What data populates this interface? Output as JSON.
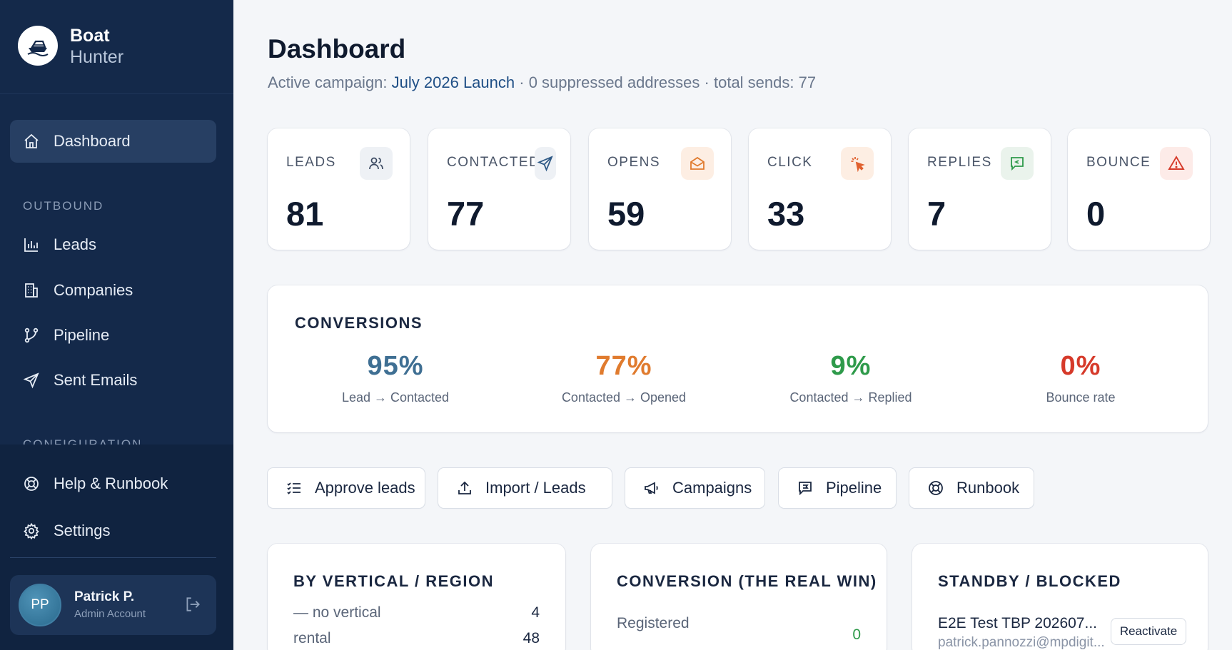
{
  "brand": {
    "name": "Boat",
    "sub": "Hunter"
  },
  "sidebar": {
    "active": "Dashboard",
    "items": [
      {
        "label": "Dashboard",
        "icon": "home-icon"
      },
      {
        "label": "Leads",
        "icon": "bar-chart-icon"
      },
      {
        "label": "Companies",
        "icon": "building-icon"
      },
      {
        "label": "Pipeline",
        "icon": "branch-icon"
      },
      {
        "label": "Sent Emails",
        "icon": "send-icon"
      },
      {
        "label": "Help & Runbook",
        "icon": "lifebuoy-icon"
      },
      {
        "label": "Settings",
        "icon": "gear-icon"
      }
    ],
    "sections": [
      "OUTBOUND",
      "CONFIGURATION"
    ]
  },
  "user": {
    "initials": "PP",
    "name": "Patrick P.",
    "role": "Admin Account"
  },
  "header": {
    "title": "Dashboard",
    "subtitle_prefix": "Active campaign:",
    "campaign": "July 2026 Launch",
    "suppressed": "0 suppressed addresses",
    "sends": "total sends: 77",
    "separator": "·"
  },
  "stats": [
    {
      "label": "LEADS",
      "value": "81",
      "icon": "users-icon"
    },
    {
      "label": "CONTACTED",
      "value": "77",
      "icon": "send-icon"
    },
    {
      "label": "OPENS",
      "value": "59",
      "icon": "envelope-open-icon"
    },
    {
      "label": "CLICK",
      "value": "33",
      "icon": "cursor-click-icon"
    },
    {
      "label": "REPLIES",
      "value": "7",
      "icon": "message-icon"
    },
    {
      "label": "BOUNCE",
      "value": "0",
      "icon": "warning-icon"
    }
  ],
  "conversions": {
    "title": "CONVERSIONS",
    "items": [
      {
        "pct": "95%",
        "label": "Lead → Contacted",
        "color": "#3f6f93"
      },
      {
        "pct": "77%",
        "label": "Contacted → Opened",
        "color": "#e07b2e"
      },
      {
        "pct": "9%",
        "label": "Contacted → Replied",
        "color": "#2e9a4a"
      },
      {
        "pct": "0%",
        "label": "Bounce rate",
        "color": "#d63a2a"
      }
    ]
  },
  "quick_actions": [
    "Approve leads",
    "Import / Leads",
    "Campaigns",
    "Pipeline",
    "Runbook"
  ],
  "panels": {
    "vertical": {
      "title": "BY VERTICAL / REGION",
      "rows": [
        {
          "label": "— no vertical",
          "value": "4"
        },
        {
          "label": "rental",
          "value": "48"
        }
      ]
    },
    "conversion": {
      "title": "CONVERSION (THE REAL WIN)",
      "row_label": "Registered",
      "row_value": "0"
    },
    "standby": {
      "title": "STANDBY / BLOCKED",
      "name": "E2E Test TBP 202607...",
      "email": "patrick.pannozzi@mpdigit...",
      "button": "Reactivate"
    }
  }
}
